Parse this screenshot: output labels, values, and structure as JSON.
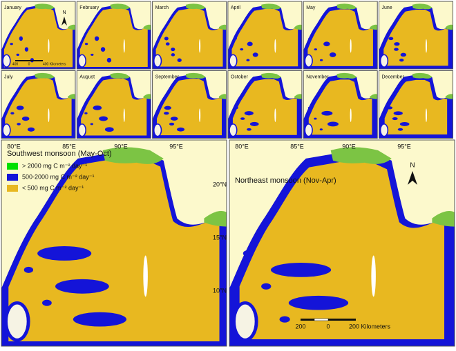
{
  "months": [
    "January",
    "February",
    "March",
    "April",
    "May",
    "June",
    "July",
    "August",
    "September",
    "October",
    "November",
    "December"
  ],
  "panels": [
    "Southwest monsoon (May-Oct)",
    "Northeast monsoon (Nov-Apr)"
  ],
  "longitude_labels": [
    "80°E",
    "85°E",
    "90°E",
    "95°E"
  ],
  "latitude_labels": [
    "20°N",
    "15°N",
    "10°N"
  ],
  "legend": [
    {
      "label": "> 2000 mg C m⁻² day⁻¹",
      "color": "#00e000"
    },
    {
      "label": "500-2000 mg C m⁻² day⁻¹",
      "color": "#1414d8"
    },
    {
      "label": "< 500 mg C m⁻² day⁻¹",
      "color": "#e8b820"
    }
  ],
  "north": "N",
  "small_scale": [
    "400",
    "0",
    "400 Kilometers"
  ],
  "large_scale": [
    "200",
    "0",
    "200 Kilometers"
  ]
}
